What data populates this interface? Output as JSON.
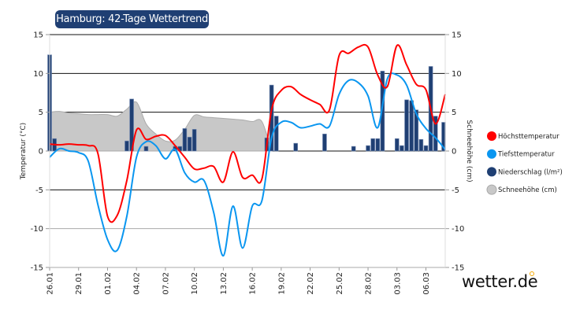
{
  "chart_data": {
    "type": "combo",
    "title": "Hamburg: 42-Tage Wettertrend",
    "ylabel_left": "Temperatur (°C)",
    "ylabel_right": "Schneehöhe (cm)",
    "ylim": [
      -15,
      15
    ],
    "yticks": [
      15,
      10,
      5,
      0,
      -5,
      -10,
      -15
    ],
    "grid": true,
    "legend_position": "right",
    "dates": [
      "26.01",
      "27.01",
      "28.01",
      "29.01",
      "30.01",
      "31.01",
      "01.02",
      "02.02",
      "03.02",
      "04.02",
      "05.02",
      "06.02",
      "07.02",
      "08.02",
      "09.02",
      "10.02",
      "11.02",
      "12.02",
      "13.02",
      "14.02",
      "15.02",
      "16.02",
      "17.02",
      "18.02",
      "19.02",
      "20.02",
      "21.02",
      "22.02",
      "23.02",
      "24.02",
      "25.02",
      "26.02",
      "27.02",
      "28.02",
      "01.03",
      "02.03",
      "03.03",
      "04.03",
      "05.03",
      "06.03",
      "07.03",
      "08.03"
    ],
    "xtick_labels": [
      "26.01",
      "29.01",
      "01.02",
      "04.02",
      "07.02",
      "10.02",
      "13.02",
      "16.02",
      "19.02",
      "22.02",
      "25.02",
      "28.02",
      "03.03",
      "06.03"
    ],
    "series": [
      {
        "name": "Höchsttemperatur",
        "type": "line",
        "color": "#ff0000",
        "values": [
          0.9,
          0.8,
          0.9,
          0.8,
          0.7,
          -0.3,
          -8.4,
          -8.3,
          -3.8,
          2.7,
          1.5,
          1.9,
          2.0,
          0.7,
          -0.8,
          -2.3,
          -2.2,
          -2.0,
          -4.0,
          -0.1,
          -3.4,
          -3.1,
          -3.6,
          5.3,
          7.8,
          8.3,
          7.3,
          6.6,
          6.0,
          5.3,
          12.3,
          12.6,
          13.4,
          13.4,
          9.8,
          8.3,
          13.6,
          11.1,
          8.6,
          7.9,
          3.5,
          7.3
        ]
      },
      {
        "name": "Tiefsttemperatur",
        "type": "line",
        "color": "#0a96f0",
        "values": [
          -0.8,
          0.3,
          0.0,
          -0.2,
          -1.3,
          -6.9,
          -11.4,
          -12.8,
          -8.4,
          -0.8,
          1.2,
          0.7,
          -1.0,
          0.2,
          -2.8,
          -4.0,
          -3.8,
          -7.9,
          -13.5,
          -7.1,
          -12.5,
          -7.1,
          -6.4,
          1.7,
          3.7,
          3.7,
          3.0,
          3.2,
          3.5,
          3.2,
          7.3,
          9.1,
          8.8,
          7.1,
          3.0,
          9.3,
          9.8,
          8.5,
          4.8,
          2.9,
          1.7,
          0.2
        ]
      },
      {
        "name": "Niederschlag (l/m²)",
        "type": "bar",
        "color": "#1f3f73",
        "points": [
          {
            "date": "26.01",
            "hour": 0,
            "value": 12.4
          },
          {
            "date": "26.01",
            "hour": 12,
            "value": 1.6
          },
          {
            "date": "03.02",
            "hour": 0,
            "value": 1.3
          },
          {
            "date": "03.02",
            "hour": 12,
            "value": 6.7
          },
          {
            "date": "05.02",
            "hour": 0,
            "value": 0.6
          },
          {
            "date": "08.02",
            "hour": 0,
            "value": 0.6
          },
          {
            "date": "08.02",
            "hour": 12,
            "value": 0.6
          },
          {
            "date": "09.02",
            "hour": 0,
            "value": 2.9
          },
          {
            "date": "09.02",
            "hour": 12,
            "value": 1.8
          },
          {
            "date": "10.02",
            "hour": 0,
            "value": 2.8
          },
          {
            "date": "17.02",
            "hour": 12,
            "value": 1.7
          },
          {
            "date": "18.02",
            "hour": 0,
            "value": 8.5
          },
          {
            "date": "18.02",
            "hour": 12,
            "value": 4.5
          },
          {
            "date": "20.02",
            "hour": 12,
            "value": 1.0
          },
          {
            "date": "23.02",
            "hour": 12,
            "value": 2.2
          },
          {
            "date": "26.02",
            "hour": 12,
            "value": 0.6
          },
          {
            "date": "28.02",
            "hour": 0,
            "value": 0.7
          },
          {
            "date": "28.02",
            "hour": 12,
            "value": 1.6
          },
          {
            "date": "01.03",
            "hour": 0,
            "value": 1.6
          },
          {
            "date": "01.03",
            "hour": 12,
            "value": 10.3
          },
          {
            "date": "03.03",
            "hour": 0,
            "value": 1.6
          },
          {
            "date": "03.03",
            "hour": 12,
            "value": 0.7
          },
          {
            "date": "04.03",
            "hour": 0,
            "value": 6.6
          },
          {
            "date": "04.03",
            "hour": 12,
            "value": 6.5
          },
          {
            "date": "05.03",
            "hour": 0,
            "value": 5.3
          },
          {
            "date": "05.03",
            "hour": 12,
            "value": 1.5
          },
          {
            "date": "06.03",
            "hour": 0,
            "value": 0.7
          },
          {
            "date": "06.03",
            "hour": 12,
            "value": 10.9
          },
          {
            "date": "07.03",
            "hour": 0,
            "value": 4.5
          },
          {
            "date": "08.03",
            "hour": 0,
            "value": 3.7
          }
        ]
      },
      {
        "name": "Schneehöhe (cm)",
        "type": "area",
        "color": "#c8c8c8",
        "values": [
          5.0,
          5.1,
          4.9,
          4.8,
          4.7,
          4.7,
          4.7,
          4.5,
          5.4,
          6.3,
          3.5,
          2.2,
          1.3,
          1.4,
          2.8,
          4.6,
          4.4,
          4.3,
          4.2,
          4.1,
          4.0,
          3.8,
          3.8,
          0,
          0,
          0,
          0,
          0,
          0,
          0,
          0,
          0,
          0,
          0,
          0,
          0,
          0,
          0,
          0,
          0,
          0,
          0
        ]
      }
    ]
  },
  "brand": {
    "logo_text": "wetter.de",
    "accent": "#f5a800"
  }
}
